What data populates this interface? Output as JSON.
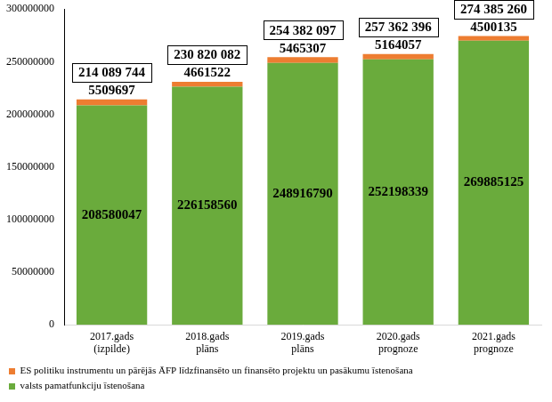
{
  "chart_data": {
    "type": "bar",
    "stacked": true,
    "grid": false,
    "legend": "bottom",
    "data_labels": true,
    "categories": [
      [
        "2017.gads",
        "(izpilde)"
      ],
      [
        "2018.gads",
        "plāns"
      ],
      [
        "2019.gads",
        "plāns"
      ],
      [
        "2020.gads",
        "prognoze"
      ],
      [
        "2021.gads",
        "prognoze"
      ]
    ],
    "series": [
      {
        "name": "valsts pamatfunkciju īstenošana",
        "color": "#6aab3c",
        "values": [
          208580047,
          226158560,
          248916790,
          252198339,
          269885125
        ]
      },
      {
        "name": "ES politiku instrumentu un pārējās ĀFP līdzfinansēto un finansēto projektu un pasākumu īstenošana",
        "color": "#ed7d31",
        "values": [
          5509697,
          4661522,
          5465307,
          5164057,
          4500135
        ]
      }
    ],
    "totals": [
      214089744,
      230820082,
      254382097,
      257362396,
      274385260
    ],
    "total_labels": [
      "214 089 744",
      "230 820 082",
      "254 382 097",
      "257 362 396",
      "274 385 260"
    ],
    "ylim": [
      0,
      300000000
    ],
    "yticks": [
      0,
      50000000,
      100000000,
      150000000,
      200000000,
      250000000,
      300000000
    ]
  }
}
